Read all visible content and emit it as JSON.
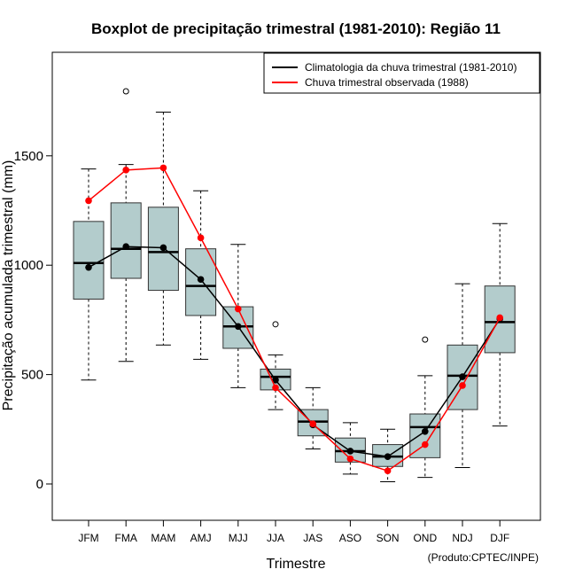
{
  "chart_data": {
    "type": "boxplot",
    "title": "Boxplot de precipitação trimestral (1981-2010): Região 11",
    "xlabel": "Trimestre",
    "ylabel": "Precipitação acumulada trimestral (mm)",
    "credit": "(Produto:CPTEC/INPE)",
    "ylim": [
      -160,
      1970
    ],
    "yticks": [
      0,
      500,
      1000,
      1500
    ],
    "ytick_labels": [
      "0",
      "500",
      "1000",
      "1500"
    ],
    "categories": [
      "JFM",
      "FMA",
      "MAM",
      "AMJ",
      "MJJ",
      "JJA",
      "JAS",
      "ASO",
      "SON",
      "OND",
      "NDJ",
      "DJF"
    ],
    "boxes": [
      {
        "min": 475,
        "q1": 845,
        "median": 1010,
        "q3": 1200,
        "max": 1440,
        "outliers": []
      },
      {
        "min": 560,
        "q1": 940,
        "median": 1075,
        "q3": 1285,
        "max": 1460,
        "outliers": [
          1795
        ]
      },
      {
        "min": 635,
        "q1": 885,
        "median": 1060,
        "q3": 1265,
        "max": 1700,
        "outliers": []
      },
      {
        "min": 570,
        "q1": 770,
        "median": 905,
        "q3": 1075,
        "max": 1340,
        "outliers": []
      },
      {
        "min": 440,
        "q1": 620,
        "median": 720,
        "q3": 810,
        "max": 1095,
        "outliers": []
      },
      {
        "min": 340,
        "q1": 430,
        "median": 490,
        "q3": 525,
        "max": 590,
        "outliers": [
          730
        ]
      },
      {
        "min": 160,
        "q1": 220,
        "median": 285,
        "q3": 340,
        "max": 440,
        "outliers": []
      },
      {
        "min": 45,
        "q1": 100,
        "median": 150,
        "q3": 210,
        "max": 280,
        "outliers": []
      },
      {
        "min": 10,
        "q1": 80,
        "median": 125,
        "q3": 180,
        "max": 250,
        "outliers": []
      },
      {
        "min": 30,
        "q1": 120,
        "median": 260,
        "q3": 320,
        "max": 495,
        "outliers": [
          660
        ]
      },
      {
        "min": 75,
        "q1": 340,
        "median": 495,
        "q3": 635,
        "max": 915,
        "outliers": []
      },
      {
        "min": 265,
        "q1": 600,
        "median": 740,
        "q3": 905,
        "max": 1190,
        "outliers": []
      }
    ],
    "series": [
      {
        "name": "Climatologia da chuva trimestral (1981-2010)",
        "color": "#000000",
        "values": [
          990,
          1085,
          1080,
          935,
          720,
          475,
          270,
          150,
          125,
          240,
          490,
          755
        ]
      },
      {
        "name": "Chuva trimestral observada (1988)",
        "color": "#ff0000",
        "values": [
          1295,
          1435,
          1445,
          1125,
          800,
          440,
          275,
          115,
          60,
          180,
          450,
          760
        ]
      }
    ],
    "box_fill": "#b3cccc",
    "legend_position": "top-right"
  }
}
